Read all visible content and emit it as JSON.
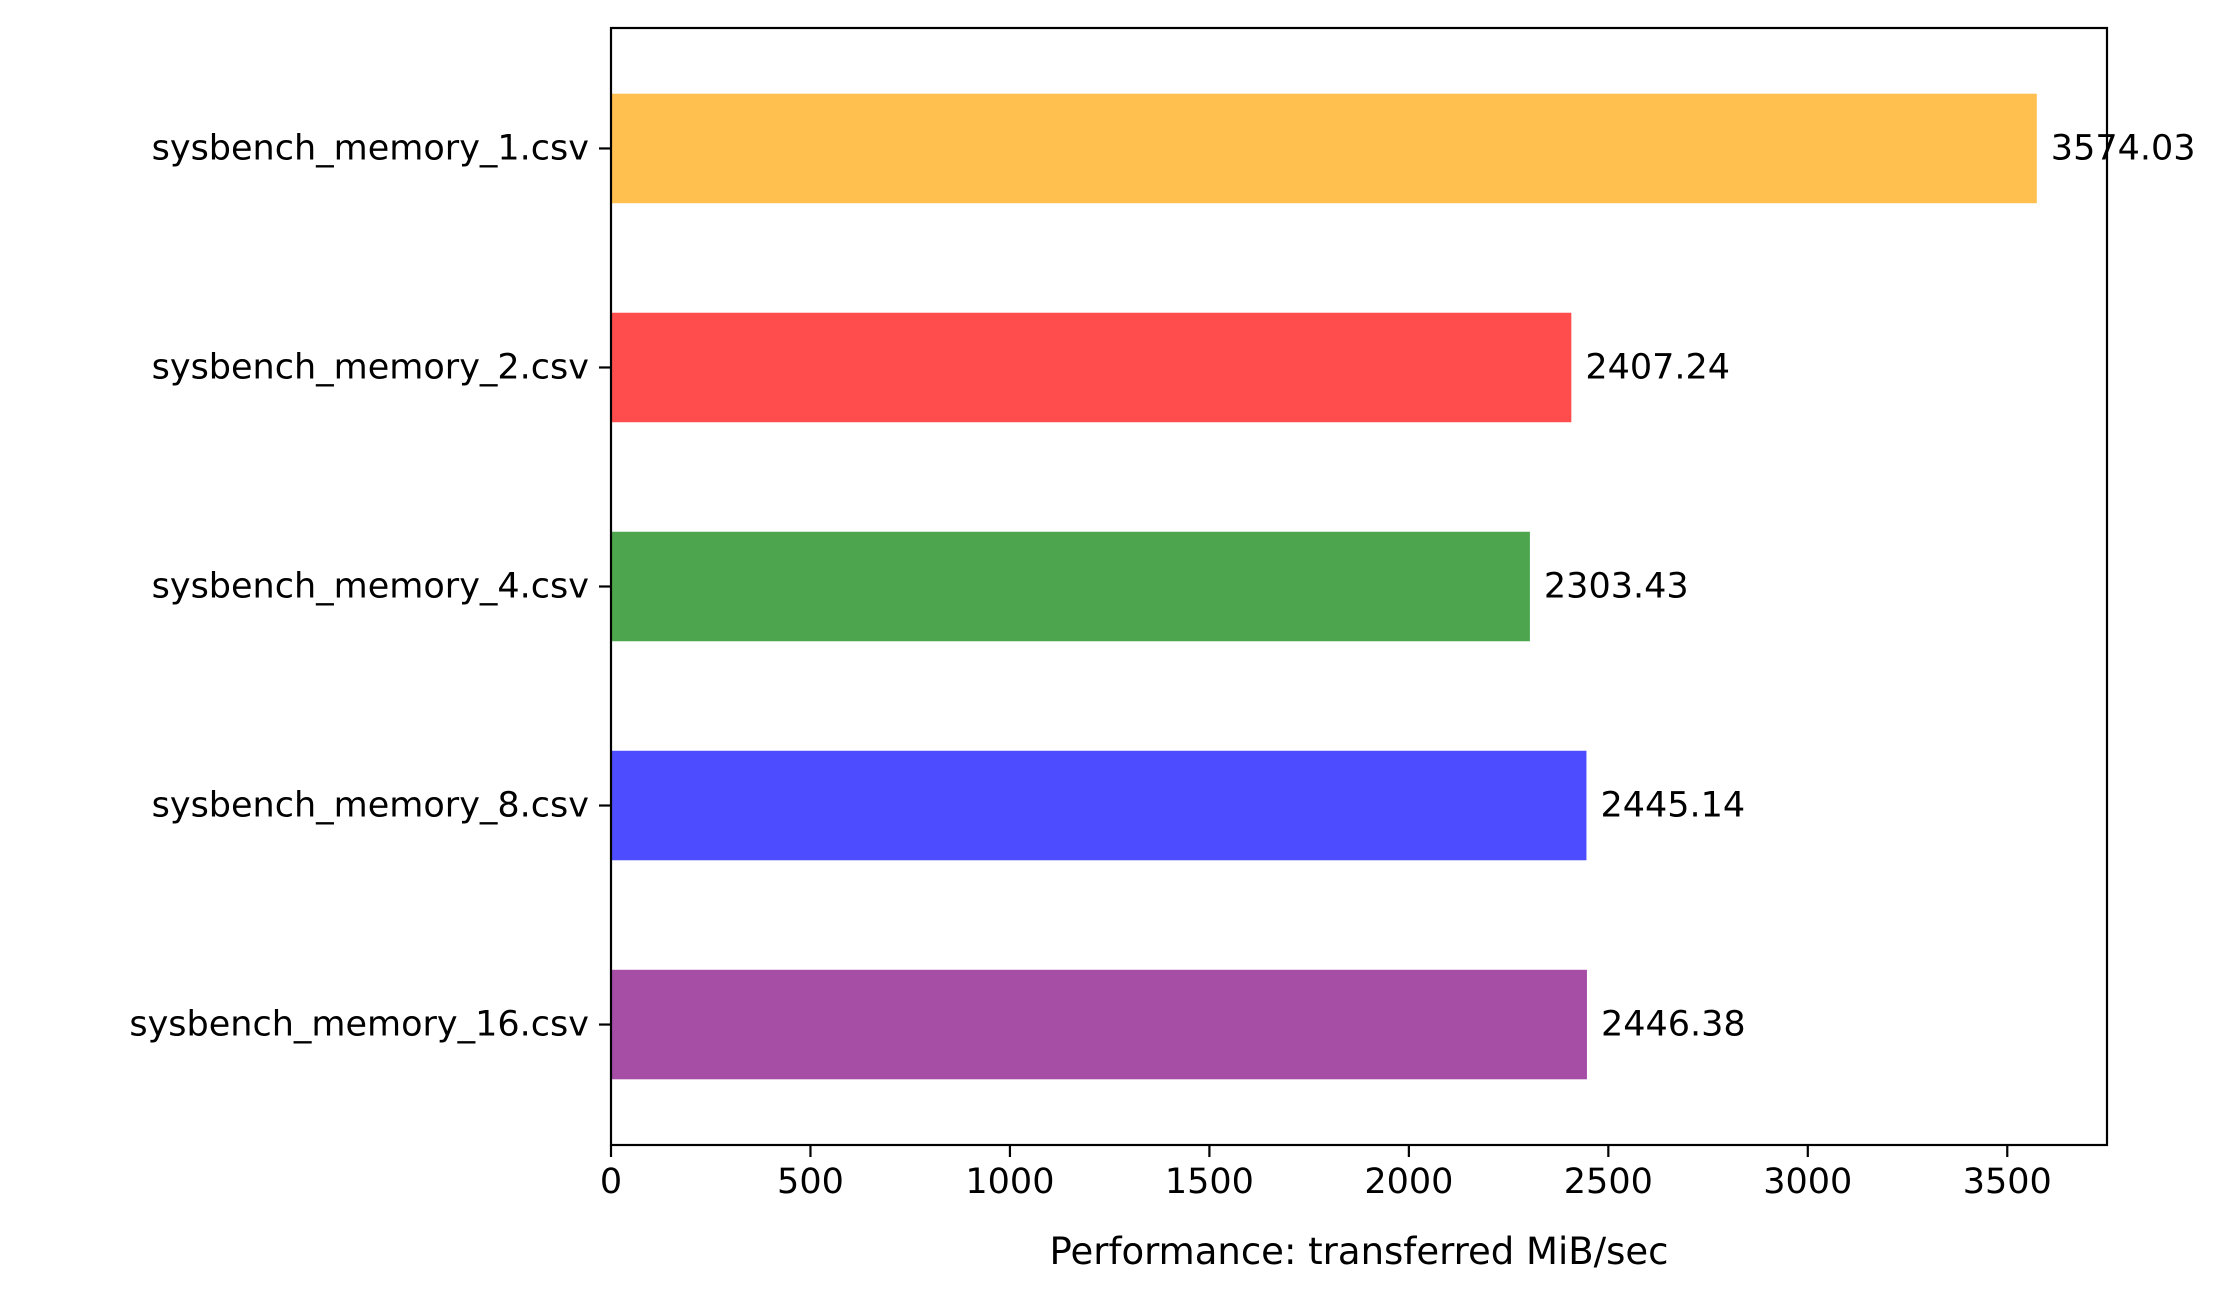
{
  "chart_data": {
    "type": "bar",
    "orientation": "horizontal",
    "title": "",
    "xlabel": "Performance: transferred MiB/sec",
    "ylabel": "",
    "xlim": [
      0,
      3750
    ],
    "xticks": [
      0,
      500,
      1000,
      1500,
      2000,
      2500,
      3000,
      3500
    ],
    "xtick_labels": [
      "0",
      "500",
      "1000",
      "1500",
      "2000",
      "2500",
      "3000",
      "3500"
    ],
    "grid": false,
    "legend": "none",
    "categories": [
      "sysbench_memory_1.csv",
      "sysbench_memory_2.csv",
      "sysbench_memory_4.csv",
      "sysbench_memory_8.csv",
      "sysbench_memory_16.csv"
    ],
    "values": [
      3574.03,
      2407.24,
      2303.43,
      2445.14,
      2446.38
    ],
    "value_labels": [
      "3574.03",
      "2407.24",
      "2303.43",
      "2445.14",
      "2446.38"
    ],
    "colors": [
      "#ffc050",
      "#ff4d4d",
      "#4da64d",
      "#4d4dff",
      "#a64da6"
    ]
  }
}
